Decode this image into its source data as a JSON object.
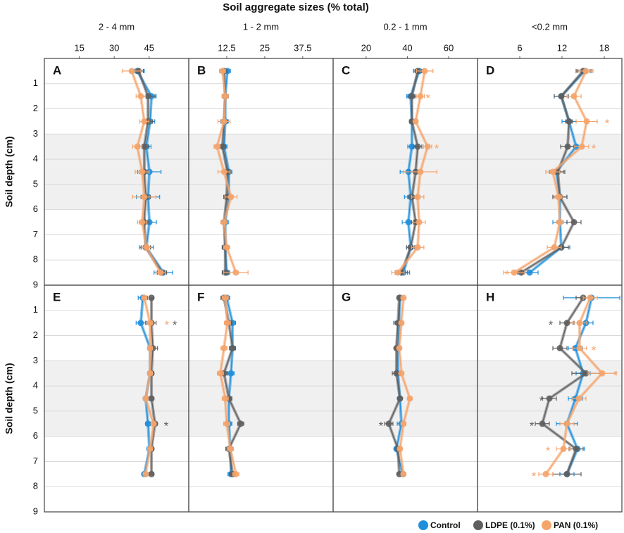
{
  "figure": {
    "title": "Soil aggregate sizes (% total)",
    "ylabel": "Soil depth (cm)",
    "ylim": [
      0,
      9
    ],
    "yticks": [
      1,
      2,
      3,
      4,
      5,
      6,
      7,
      8,
      9
    ],
    "shaded_depth": [
      3,
      6
    ],
    "legend": [
      {
        "name": "Control",
        "color": "#1f8fdc"
      },
      {
        "name": "LDPE (0.1%)",
        "color": "#5f5f5f"
      },
      {
        "name": "PAN (0.1%)",
        "color": "#f5a46c"
      }
    ],
    "columns": [
      {
        "label": "2 - 4 mm",
        "xlim": [
          0,
          62
        ],
        "xticks": [
          15,
          30,
          45
        ]
      },
      {
        "label": "1 - 2 mm",
        "xlim": [
          0,
          47.5
        ],
        "xticks": [
          12.5,
          25,
          37.5
        ]
      },
      {
        "label": "0.2 - 1 mm",
        "xlim": [
          4,
          74
        ],
        "xticks": [
          20,
          40,
          60
        ]
      },
      {
        "label": "<0.2 mm",
        "xlim": [
          0,
          20.5
        ],
        "xticks": [
          6,
          12,
          18
        ]
      }
    ]
  },
  "chart_data": [
    {
      "type": "line",
      "label": "A",
      "depths": [
        0.5,
        1.5,
        2.5,
        3.5,
        4.5,
        5.5,
        6.5,
        7.5,
        8.5
      ],
      "series": [
        {
          "values": [
            39.9,
            46.0,
            45.4,
            43.8,
            45.1,
            44.5,
            45.1,
            43.8,
            51.1
          ],
          "errors": [
            3,
            2,
            2,
            2,
            5,
            5,
            3,
            3,
            4
          ]
        },
        {
          "values": [
            40.5,
            44.5,
            44.5,
            42.9,
            42.9,
            43.5,
            42.9,
            43.5,
            50.5
          ],
          "errors": [
            2,
            3,
            2,
            2,
            2,
            2,
            2,
            2,
            2
          ]
        },
        {
          "values": [
            37.5,
            41.4,
            42.9,
            39.9,
            42.0,
            42.9,
            42.0,
            43.8,
            49.9
          ],
          "errors": [
            4,
            2,
            2,
            2,
            3,
            5,
            2,
            2,
            2
          ]
        }
      ],
      "annotations": []
    },
    {
      "type": "line",
      "label": "B",
      "depths": [
        0.5,
        1.5,
        2.5,
        3.5,
        4.5,
        5.5,
        6.5,
        7.5,
        8.5
      ],
      "series": [
        {
          "values": [
            12.7,
            12.0,
            12.0,
            11.6,
            13.2,
            13.2,
            12.0,
            12.0,
            12.5
          ],
          "errors": [
            1,
            1,
            1,
            1,
            1,
            1,
            1,
            1,
            1
          ]
        },
        {
          "values": [
            11.6,
            12.0,
            11.6,
            11.1,
            12.7,
            12.5,
            11.6,
            12.0,
            12.0
          ],
          "errors": [
            1,
            1,
            1,
            1,
            1,
            1,
            1,
            1,
            1
          ]
        },
        {
          "values": [
            11.1,
            12.0,
            11.6,
            9.3,
            11.6,
            13.9,
            11.6,
            12.5,
            15.5
          ],
          "errors": [
            1,
            1,
            2,
            1,
            2,
            2,
            1,
            1,
            4
          ]
        }
      ],
      "annotations": []
    },
    {
      "type": "line",
      "label": "C",
      "depths": [
        0.5,
        1.5,
        2.5,
        3.5,
        4.5,
        5.5,
        6.5,
        7.5,
        8.5
      ],
      "series": [
        {
          "values": [
            45.7,
            41.6,
            42.2,
            42.2,
            40.5,
            41.6,
            40.5,
            41.6,
            38.1
          ],
          "errors": [
            2,
            2,
            1,
            2,
            4,
            3,
            3,
            2,
            3
          ]
        },
        {
          "values": [
            45.0,
            42.2,
            42.2,
            45.0,
            44.0,
            42.2,
            44.0,
            41.6,
            37.1
          ],
          "errors": [
            2,
            2,
            1,
            2,
            3,
            2,
            2,
            2,
            3
          ]
        },
        {
          "values": [
            48.4,
            46.3,
            44.0,
            49.8,
            46.3,
            45.0,
            45.7,
            45.0,
            35.4
          ],
          "errors": [
            4,
            2,
            1,
            2,
            8,
            3,
            3,
            3,
            3
          ]
        }
      ],
      "annotations": [
        {
          "text": "*",
          "series": 2,
          "x": 50,
          "depth": 1.5
        },
        {
          "text": "*",
          "series": 2,
          "x": 54.2,
          "depth": 3.5
        }
      ]
    },
    {
      "type": "line",
      "label": "D",
      "depths": [
        0.5,
        1.5,
        2.5,
        3.5,
        4.5,
        5.5,
        6.5,
        7.5,
        8.5
      ],
      "series": [
        {
          "values": [
            15.2,
            11.9,
            13.0,
            14.0,
            11.2,
            11.7,
            11.7,
            11.9,
            7.4
          ],
          "errors": [
            1,
            1,
            1,
            1,
            1,
            1,
            1,
            1.2,
            1.2
          ]
        },
        {
          "values": [
            15.0,
            11.9,
            13.0,
            12.8,
            11.4,
            11.7,
            13.7,
            11.9,
            6.2
          ],
          "errors": [
            1,
            1,
            0.5,
            1,
            1,
            1,
            1,
            1,
            0.5
          ]
        },
        {
          "values": [
            15.4,
            13.7,
            15.5,
            14.8,
            10.7,
            11.5,
            11.7,
            10.9,
            5.2
          ],
          "errors": [
            1,
            1,
            1.5,
            1,
            1,
            0.5,
            0.5,
            1,
            1.5
          ]
        }
      ],
      "annotations": [
        {
          "text": "*",
          "series": 2,
          "x": 18.4,
          "depth": 2.5
        },
        {
          "text": "*",
          "series": 2,
          "x": 16.5,
          "depth": 3.5
        },
        {
          "text": "*",
          "series": 2,
          "x": 4.2,
          "depth": 8.5
        }
      ]
    },
    {
      "type": "line",
      "label": "E",
      "depths": [
        0.5,
        1.5,
        2.5,
        3.5,
        4.5,
        5.5,
        6.5,
        7.5
      ],
      "series": [
        {
          "values": [
            42.3,
            41.4,
            45.4,
            45.4,
            43.5,
            44.5,
            45.1,
            42.9
          ],
          "errors": [
            2,
            2,
            1,
            1,
            1,
            1,
            1,
            1
          ]
        },
        {
          "values": [
            46.0,
            46.0,
            46.6,
            46.0,
            46.0,
            47.5,
            46.0,
            46.0
          ],
          "errors": [
            1,
            2,
            2,
            1,
            1,
            1,
            1,
            1
          ]
        },
        {
          "values": [
            42.9,
            45.4,
            45.4,
            45.4,
            43.5,
            46.9,
            45.4,
            43.5
          ],
          "errors": [
            1,
            1,
            1,
            1,
            1,
            1,
            1,
            1
          ]
        }
      ],
      "annotations": [
        {
          "text": "*",
          "series": 2,
          "x": 52.6,
          "depth": 1.5
        },
        {
          "text": "*",
          "series": 1,
          "x": 56,
          "depth": 1.5
        },
        {
          "text": "*",
          "series": 1,
          "x": 52.3,
          "depth": 5.5
        }
      ]
    },
    {
      "type": "line",
      "label": "F",
      "depths": [
        0.5,
        1.5,
        2.5,
        3.5,
        4.5,
        5.5,
        6.5,
        7.5
      ],
      "series": [
        {
          "values": [
            12.5,
            14.4,
            14.4,
            13.9,
            13.2,
            13.2,
            13.7,
            13.9
          ],
          "errors": [
            1,
            1,
            1,
            1,
            1,
            1,
            1,
            1
          ]
        },
        {
          "values": [
            11.6,
            13.2,
            14.4,
            11.6,
            13.2,
            17.1,
            13.2,
            14.4
          ],
          "errors": [
            1,
            1,
            1,
            1,
            1,
            1,
            1,
            1
          ]
        },
        {
          "values": [
            12.0,
            12.7,
            11.6,
            10.4,
            12.0,
            12.5,
            13.7,
            15.5
          ],
          "errors": [
            1,
            1,
            1,
            1,
            1,
            1,
            1,
            1
          ]
        }
      ],
      "annotations": []
    },
    {
      "type": "line",
      "label": "G",
      "depths": [
        0.5,
        1.5,
        2.5,
        3.5,
        4.5,
        5.5,
        6.5,
        7.5
      ],
      "series": [
        {
          "values": [
            36.4,
            36.1,
            35.4,
            35.4,
            36.4,
            37.1,
            34.7,
            37.8
          ],
          "errors": [
            1,
            2,
            1,
            1,
            1,
            2,
            1,
            1
          ]
        },
        {
          "values": [
            36.1,
            35.4,
            34.7,
            34.7,
            36.4,
            31.0,
            35.4,
            36.1
          ],
          "errors": [
            1,
            2,
            1,
            2,
            1,
            2,
            1,
            1
          ]
        },
        {
          "values": [
            38.1,
            37.1,
            36.1,
            37.1,
            41.2,
            38.1,
            36.4,
            38.1
          ],
          "errors": [
            1,
            1,
            1,
            1,
            1,
            1,
            1,
            1
          ]
        }
      ],
      "annotations": [
        {
          "text": "*",
          "series": 1,
          "x": 27.2,
          "depth": 5.5
        }
      ]
    },
    {
      "type": "line",
      "label": "H",
      "depths": [
        0.5,
        1.5,
        2.5,
        3.5,
        4.5,
        5.5,
        6.5,
        7.5
      ],
      "series": [
        {
          "values": [
            16.2,
            15.4,
            13.9,
            15.0,
            13.9,
            12.7,
            14.2,
            12.7
          ],
          "errors": [
            4,
            1,
            1,
            1,
            1,
            1.5,
            1,
            1
          ]
        },
        {
          "values": [
            15.0,
            12.7,
            11.7,
            15.4,
            10.2,
            9.2,
            14.0,
            12.7
          ],
          "errors": [
            1,
            1,
            1,
            2,
            1,
            1,
            1,
            2
          ]
        },
        {
          "values": [
            16.0,
            14.5,
            14.5,
            17.7,
            14.4,
            12.7,
            12.2,
            9.7
          ],
          "errors": [
            1,
            1,
            1,
            2,
            1,
            1,
            1,
            1
          ]
        }
      ],
      "annotations": [
        {
          "text": "*",
          "series": 1,
          "x": 10.4,
          "depth": 1.5
        },
        {
          "text": "*",
          "series": 2,
          "x": 16.5,
          "depth": 2.5
        },
        {
          "text": "*",
          "series": 2,
          "x": 19.6,
          "depth": 3.5
        },
        {
          "text": "*",
          "series": 1,
          "x": 9.1,
          "depth": 4.5
        },
        {
          "text": "*",
          "series": 1,
          "x": 7.7,
          "depth": 5.5
        },
        {
          "text": "*",
          "series": 2,
          "x": 10.0,
          "depth": 6.5
        },
        {
          "text": "*",
          "series": 2,
          "x": 8.0,
          "depth": 7.5
        }
      ]
    }
  ]
}
